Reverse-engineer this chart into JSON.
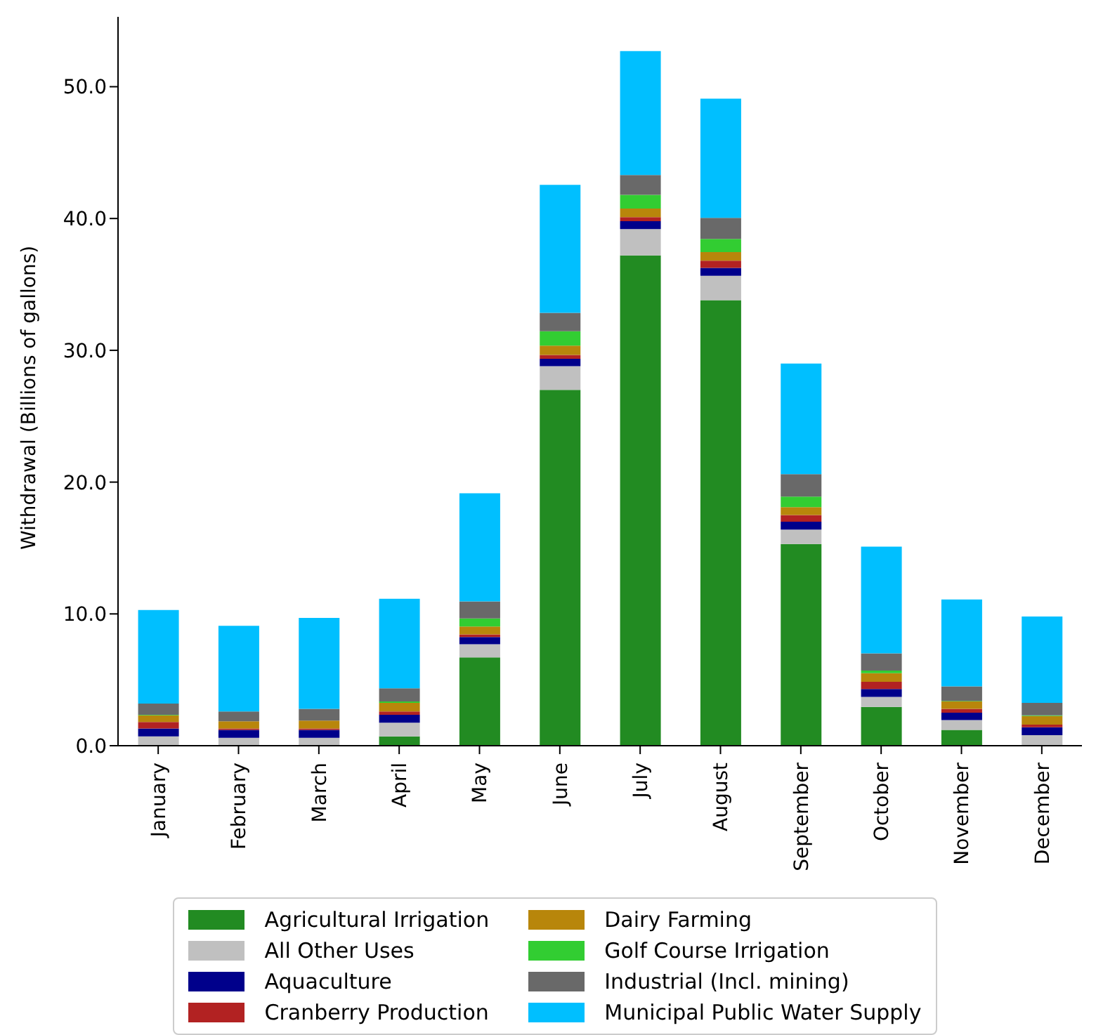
{
  "chart_data": {
    "type": "bar",
    "stacked": true,
    "ylabel": "Withdrawal (Billions of gallons)",
    "categories": [
      "January",
      "February",
      "March",
      "April",
      "May",
      "June",
      "July",
      "August",
      "September",
      "October",
      "November",
      "December"
    ],
    "series": [
      {
        "name": "Agricultural Irrigation",
        "color": "#228b22",
        "values": [
          0,
          0,
          0,
          0.7,
          6.7,
          27.0,
          37.2,
          33.8,
          15.3,
          2.95,
          1.2,
          0
        ]
      },
      {
        "name": "All Other Uses",
        "color": "#c0c0c0",
        "values": [
          0.7,
          0.6,
          0.6,
          1.05,
          1.0,
          1.8,
          2.0,
          1.85,
          1.1,
          0.75,
          0.75,
          0.8
        ]
      },
      {
        "name": "Aquaculture",
        "color": "#00008b",
        "values": [
          0.6,
          0.6,
          0.6,
          0.6,
          0.55,
          0.55,
          0.6,
          0.6,
          0.6,
          0.6,
          0.55,
          0.6
        ]
      },
      {
        "name": "Cranberry Production",
        "color": "#b22222",
        "values": [
          0.5,
          0.1,
          0.1,
          0.25,
          0.2,
          0.3,
          0.3,
          0.55,
          0.5,
          0.55,
          0.3,
          0.2
        ]
      },
      {
        "name": "Dairy Farming",
        "color": "#b8860b",
        "values": [
          0.5,
          0.55,
          0.6,
          0.65,
          0.6,
          0.7,
          0.65,
          0.65,
          0.6,
          0.65,
          0.55,
          0.65
        ]
      },
      {
        "name": "Golf Course Irrigation",
        "color": "#32cd32",
        "values": [
          0.05,
          0,
          0,
          0.1,
          0.6,
          1.1,
          1.05,
          1.0,
          0.8,
          0.2,
          0.05,
          0.05
        ]
      },
      {
        "name": "Industrial (Incl. mining)",
        "color": "#696969",
        "values": [
          0.85,
          0.75,
          0.9,
          1.0,
          1.3,
          1.4,
          1.5,
          1.6,
          1.7,
          1.3,
          1.1,
          0.95
        ]
      },
      {
        "name": "Municipal Public Water Supply",
        "color": "#00bfff",
        "values": [
          7.1,
          6.5,
          6.9,
          6.8,
          8.2,
          9.7,
          9.4,
          9.05,
          8.4,
          8.1,
          6.6,
          6.55
        ]
      }
    ],
    "ylim": [
      0,
      55.3
    ],
    "yticks": [
      {
        "value": 0,
        "label": "0.0"
      },
      {
        "value": 10,
        "label": "10.0"
      },
      {
        "value": 20,
        "label": "20.0"
      },
      {
        "value": 30,
        "label": "30.0"
      },
      {
        "value": 40,
        "label": "40.0"
      },
      {
        "value": 50,
        "label": "50.0"
      }
    ],
    "grid": false,
    "legend": "bottom"
  }
}
